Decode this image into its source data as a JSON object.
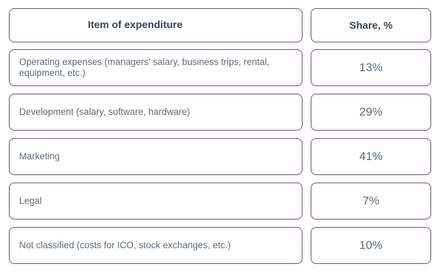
{
  "chart_data": {
    "type": "table",
    "columns": [
      "Item of expenditure",
      "Share, %"
    ],
    "rows": [
      {
        "item": "Operating expenses (managers' salary, business trips, rental, equipment, etc.)",
        "share": "13%"
      },
      {
        "item": "Development (salary, software, hardware)",
        "share": "29%"
      },
      {
        "item": "Marketing",
        "share": "41%"
      },
      {
        "item": "Legal",
        "share": "7%"
      },
      {
        "item": "Not classified (costs for ICO, stock exchanges, etc.)",
        "share": "10%"
      }
    ],
    "values": [
      13,
      29,
      41,
      7,
      10
    ],
    "colors": {
      "border": "#6d4a73",
      "text": "#5f6b76",
      "header_text": "#3b4651"
    }
  }
}
